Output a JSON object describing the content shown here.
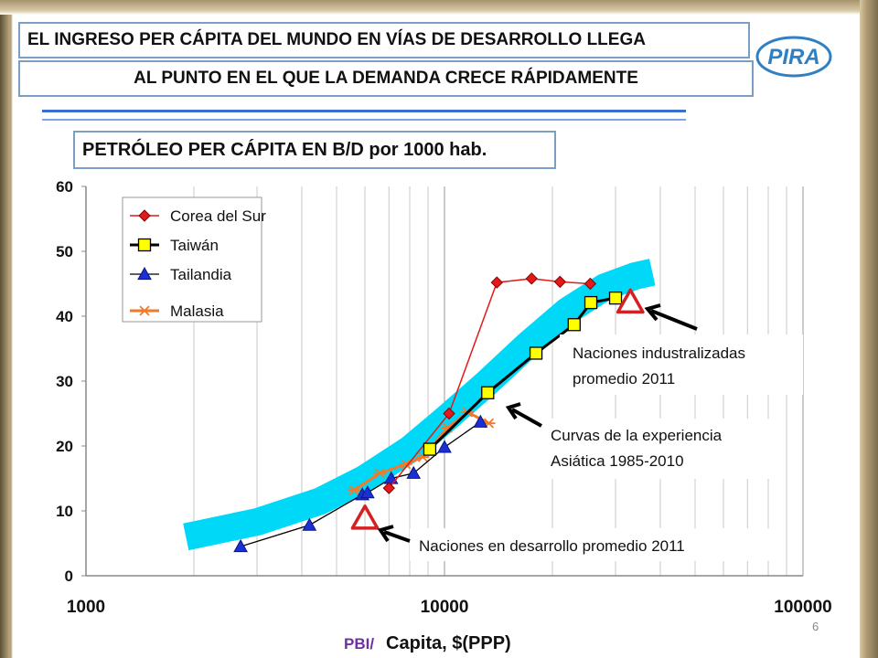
{
  "slide": {
    "title_line1": "EL INGRESO PER CÁPITA DEL MUNDO EN VÍAS DE DESARROLLO LLEGA",
    "title_line2": "AL PUNTO EN EL QUE LA DEMANDA CRECE RÁPIDAMENTE",
    "logo_text": "PIRA",
    "page_number": "6"
  },
  "chart_data": {
    "type": "line",
    "title": "PETRÓLEO PER CÁPITA EN B/D por 1000 hab.",
    "xlabel_part1": "PBI/",
    "xlabel_part2": "Capita, $(PPP)",
    "xscale": "log",
    "xlim": [
      1000,
      100000
    ],
    "ylim": [
      0,
      60
    ],
    "x_ticks": [
      1000,
      10000,
      100000
    ],
    "x_tick_labels": [
      "1000",
      "10000",
      "100000"
    ],
    "y_ticks": [
      0,
      10,
      20,
      30,
      40,
      50,
      60
    ],
    "y_tick_labels": [
      "0",
      "10",
      "20",
      "30",
      "40",
      "50",
      "60"
    ],
    "grid": "vertical",
    "legend_position": "top-left",
    "series": [
      {
        "name": "Corea del Sur",
        "color": "#e21a1a",
        "marker": "diamond",
        "x": [
          7000,
          10300,
          14000,
          17500,
          21000,
          25500
        ],
        "y": [
          13.5,
          25,
          45.2,
          45.8,
          45.3,
          45
        ]
      },
      {
        "name": "Taiwán",
        "color": "#000000",
        "marker": "square",
        "x": [
          9100,
          13200,
          18000,
          23000,
          25600,
          30000
        ],
        "y": [
          19.5,
          28.2,
          34.3,
          38.7,
          42.1,
          42.8
        ]
      },
      {
        "name": "Tailandia",
        "color": "#000000",
        "marker": "triangle",
        "x": [
          2700,
          4200,
          5900,
          6100,
          7100,
          8200,
          10000,
          12600
        ],
        "y": [
          4.5,
          7.8,
          12.5,
          12.8,
          15,
          15.8,
          19.8,
          23.7
        ]
      },
      {
        "name": "Malasia",
        "color": "#f07a2a",
        "marker": "star",
        "x": [
          5600,
          6600,
          7800,
          8700,
          10200,
          11600,
          13300
        ],
        "y": [
          13.2,
          15.8,
          17.2,
          18.3,
          22.8,
          25.2,
          23.5
        ]
      }
    ],
    "band": {
      "label": "Curvas de la experiencia Asiática 1985-2010",
      "color": "#00d8f8",
      "x": [
        1900,
        3000,
        4500,
        6000,
        8000,
        10000,
        13000,
        17000,
        22000,
        28000,
        34000,
        38000
      ],
      "y": [
        6,
        8.3,
        11.5,
        15,
        19.5,
        24,
        29.5,
        35.5,
        40.8,
        44.5,
        46.2,
        46.8
      ]
    },
    "reference_points": [
      {
        "label": "Naciones industralizadas promedio 2011",
        "x": 33000,
        "y": 42.2
      },
      {
        "label": "Naciones en desarrollo promedio 2011",
        "x": 6000,
        "y": 8.9
      }
    ],
    "annotations": {
      "industrialized_line1": "Naciones industralizadas",
      "industrialized_line2": "promedio 2011",
      "asian_line1": "Curvas de la experiencia",
      "asian_line2": "Asiática 1985-2010",
      "developing": "Naciones en desarrollo promedio 2011"
    }
  }
}
